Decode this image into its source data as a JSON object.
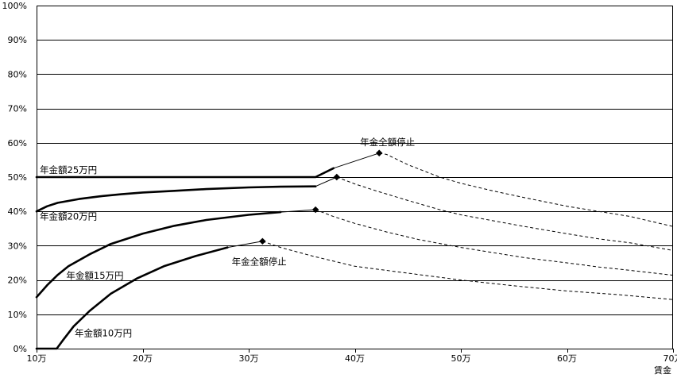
{
  "chart_data": {
    "type": "line",
    "xlabel": "賃金",
    "x_unit": "万",
    "xlim": [
      10,
      70
    ],
    "ylim": [
      0,
      100
    ],
    "y_ticks": [
      0,
      10,
      20,
      30,
      40,
      50,
      60,
      70,
      80,
      90,
      100
    ],
    "x_ticks": [
      10,
      20,
      30,
      40,
      50,
      60,
      70
    ],
    "grid": "horizontal",
    "series": [
      {
        "name": "年金額25万円",
        "label_at": [
          10.3,
          51.2
        ],
        "solid": [
          [
            10,
            50
          ],
          [
            12,
            50
          ],
          [
            15,
            50
          ],
          [
            20,
            50
          ],
          [
            25,
            50
          ],
          [
            30,
            50
          ],
          [
            33,
            50
          ],
          [
            36.3,
            50
          ],
          [
            38,
            52.6
          ],
          [
            42.3,
            57
          ]
        ],
        "dashed": [
          [
            42.3,
            57
          ],
          [
            43,
            56.6
          ],
          [
            45,
            53.6
          ],
          [
            48,
            50
          ],
          [
            50,
            48.2
          ],
          [
            53,
            46
          ],
          [
            56,
            44
          ],
          [
            60,
            41.5
          ],
          [
            63,
            40
          ],
          [
            66,
            38.5
          ],
          [
            70,
            35.6
          ]
        ],
        "stop": [
          42.3,
          57
        ]
      },
      {
        "name": "年金額20万円",
        "label_at": [
          10.3,
          37.6
        ],
        "solid": [
          [
            10,
            40
          ],
          [
            11,
            41.5
          ],
          [
            12,
            42.5
          ],
          [
            14,
            43.6
          ],
          [
            16,
            44.4
          ],
          [
            18,
            45
          ],
          [
            20,
            45.5
          ],
          [
            23,
            46
          ],
          [
            26,
            46.5
          ],
          [
            30,
            47
          ],
          [
            33,
            47.2
          ],
          [
            36.3,
            47.3
          ],
          [
            38.3,
            50
          ]
        ],
        "dashed": [
          [
            38.3,
            50
          ],
          [
            40,
            48
          ],
          [
            42,
            46
          ],
          [
            45,
            43.2
          ],
          [
            48,
            40.5
          ],
          [
            50,
            39
          ],
          [
            53,
            37.3
          ],
          [
            56,
            35.6
          ],
          [
            60,
            33.5
          ],
          [
            63,
            32
          ],
          [
            66,
            30.8
          ],
          [
            70,
            28.6
          ]
        ],
        "stop": [
          38.3,
          50
        ]
      },
      {
        "name": "年金額15万円",
        "label_at": [
          12.8,
          20.4
        ],
        "solid": [
          [
            10,
            15
          ],
          [
            11,
            18.5
          ],
          [
            12,
            21.5
          ],
          [
            13,
            24
          ],
          [
            15,
            27.5
          ],
          [
            17,
            30.5
          ],
          [
            20,
            33.5
          ],
          [
            23,
            35.8
          ],
          [
            26,
            37.5
          ],
          [
            30,
            39
          ],
          [
            33,
            39.8
          ],
          [
            36.3,
            40.5
          ]
        ],
        "dashed": [
          [
            36.3,
            40.5
          ],
          [
            38,
            38.5
          ],
          [
            40,
            36.5
          ],
          [
            43,
            34
          ],
          [
            46,
            31.8
          ],
          [
            50,
            29.5
          ],
          [
            53,
            28
          ],
          [
            56,
            26.5
          ],
          [
            60,
            25
          ],
          [
            63,
            23.8
          ],
          [
            66,
            22.8
          ],
          [
            70,
            21.4
          ]
        ],
        "stop": [
          36.3,
          40.5
        ]
      },
      {
        "name": "年金額10万円",
        "label_at": [
          13.6,
          3.6
        ],
        "solid": [
          [
            10,
            0
          ],
          [
            11.9,
            0
          ],
          [
            12.5,
            2.5
          ],
          [
            13.5,
            6.5
          ],
          [
            15,
            11
          ],
          [
            17,
            16
          ],
          [
            19.5,
            20.5
          ],
          [
            22,
            24
          ],
          [
            25,
            27
          ],
          [
            28,
            29.5
          ],
          [
            31.3,
            31.3
          ]
        ],
        "dashed": [
          [
            31.3,
            31.3
          ],
          [
            33,
            29.5
          ],
          [
            36,
            27
          ],
          [
            40,
            24
          ],
          [
            45,
            22
          ],
          [
            50,
            20
          ],
          [
            55,
            18.3
          ],
          [
            60,
            16.8
          ],
          [
            65,
            15.7
          ],
          [
            70,
            14.3
          ]
        ],
        "stop": [
          31.3,
          31.3
        ]
      }
    ],
    "annotations": [
      {
        "text": "年金全額停止",
        "at": [
          40.5,
          59.3
        ]
      },
      {
        "text": "年金全額停止",
        "at": [
          28.4,
          24.4
        ]
      }
    ]
  }
}
